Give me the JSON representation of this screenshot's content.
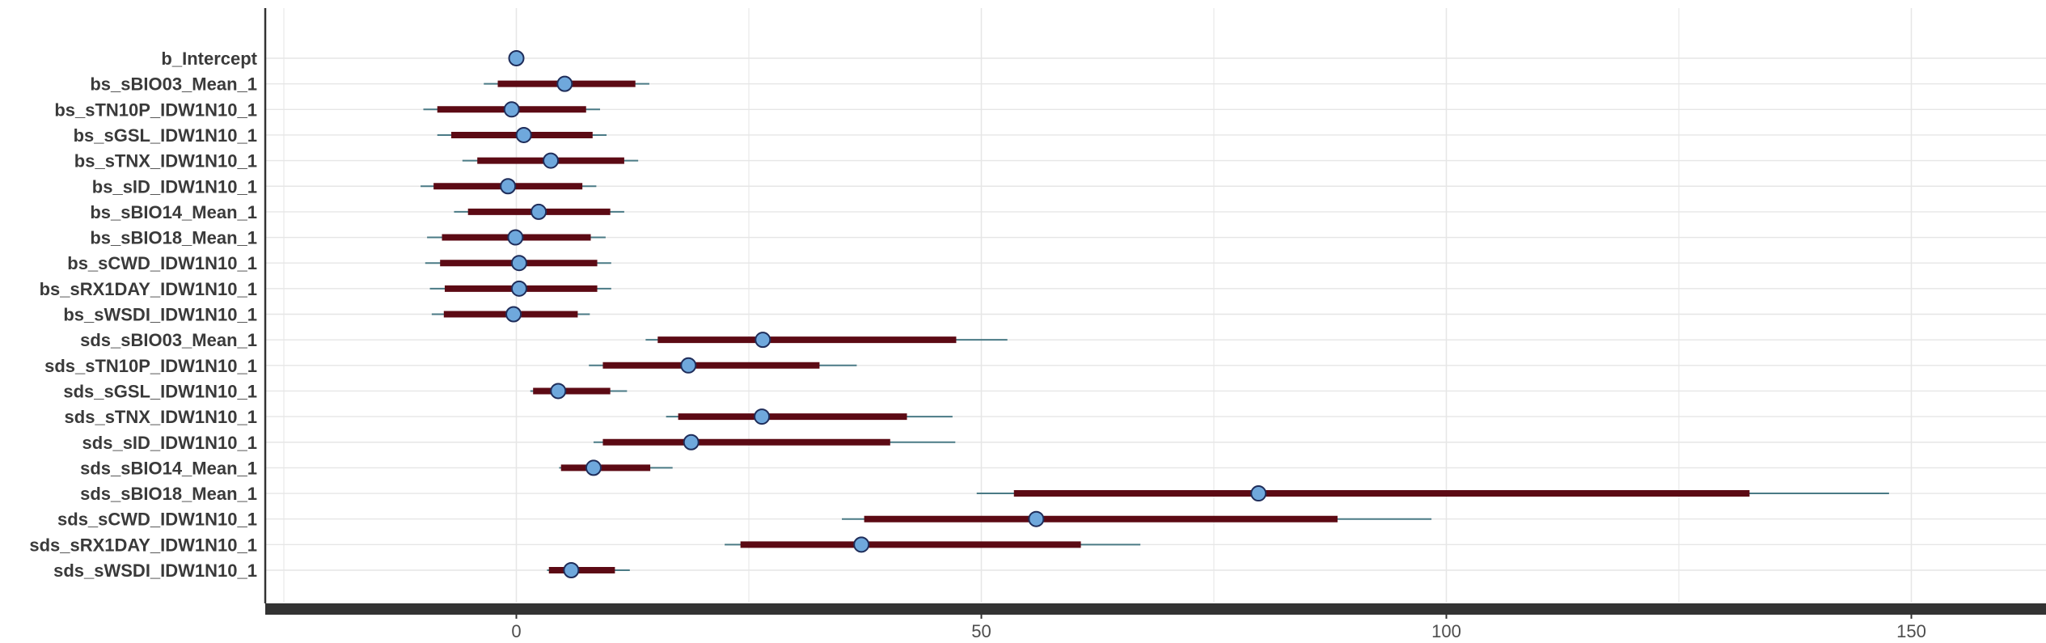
{
  "chart_data": {
    "type": "interval",
    "title": "",
    "xlabel": "",
    "ylabel": "",
    "xlim": [
      -27,
      164
    ],
    "x_ticks": [
      0,
      50,
      100,
      150
    ],
    "x_tick_labels": [
      "0",
      "50",
      "100",
      "150"
    ],
    "grid": true,
    "colors": {
      "outer_interval": "#4a7a85",
      "inner_interval": "#5c0a14",
      "point_fill": "#6fa8dc",
      "point_stroke": "#1f2d5a",
      "axis": "#333333",
      "grid": "#e6e6e6"
    },
    "parameters": [
      {
        "name": "b_Intercept",
        "point": 0,
        "inner": [
          0,
          0
        ],
        "outer": [
          0,
          0
        ]
      },
      {
        "name": "bs_sBIO03_Mean_1",
        "point": 5.2,
        "inner": [
          -2,
          12.8
        ],
        "outer": [
          -3.5,
          14.3
        ]
      },
      {
        "name": "bs_sTN10P_IDW1N10_1",
        "point": -0.5,
        "inner": [
          -8.5,
          7.5
        ],
        "outer": [
          -10,
          9
        ]
      },
      {
        "name": "bs_sGSL_IDW1N10_1",
        "point": 0.8,
        "inner": [
          -7,
          8.2
        ],
        "outer": [
          -8.5,
          9.7
        ]
      },
      {
        "name": "bs_sTNX_IDW1N10_1",
        "point": 3.7,
        "inner": [
          -4.2,
          11.6
        ],
        "outer": [
          -5.8,
          13.1
        ]
      },
      {
        "name": "bs_sID_IDW1N10_1",
        "point": -0.9,
        "inner": [
          -8.9,
          7.1
        ],
        "outer": [
          -10.3,
          8.6
        ]
      },
      {
        "name": "bs_sBIO14_Mean_1",
        "point": 2.4,
        "inner": [
          -5.2,
          10.1
        ],
        "outer": [
          -6.7,
          11.6
        ]
      },
      {
        "name": "bs_sBIO18_Mean_1",
        "point": -0.1,
        "inner": [
          -8,
          8
        ],
        "outer": [
          -9.6,
          9.6
        ]
      },
      {
        "name": "bs_sCWD_IDW1N10_1",
        "point": 0.3,
        "inner": [
          -8.2,
          8.7
        ],
        "outer": [
          -9.8,
          10.2
        ]
      },
      {
        "name": "bs_sRX1DAY_IDW1N10_1",
        "point": 0.3,
        "inner": [
          -7.7,
          8.7
        ],
        "outer": [
          -9.3,
          10.2
        ]
      },
      {
        "name": "bs_sWSDI_IDW1N10_1",
        "point": -0.3,
        "inner": [
          -7.8,
          6.6
        ],
        "outer": [
          -9.1,
          7.9
        ]
      },
      {
        "name": "sds_sBIO03_Mean_1",
        "point": 26.5,
        "inner": [
          15.2,
          47.3
        ],
        "outer": [
          13.9,
          52.8
        ]
      },
      {
        "name": "sds_sTN10P_IDW1N10_1",
        "point": 18.5,
        "inner": [
          9.3,
          32.6
        ],
        "outer": [
          7.8,
          36.6
        ]
      },
      {
        "name": "sds_sGSL_IDW1N10_1",
        "point": 4.5,
        "inner": [
          1.8,
          10.1
        ],
        "outer": [
          1.5,
          11.9
        ]
      },
      {
        "name": "sds_sTNX_IDW1N10_1",
        "point": 26.4,
        "inner": [
          17.4,
          42
        ],
        "outer": [
          16.1,
          46.9
        ]
      },
      {
        "name": "sds_sID_IDW1N10_1",
        "point": 18.8,
        "inner": [
          9.3,
          40.2
        ],
        "outer": [
          8.3,
          47.2
        ]
      },
      {
        "name": "sds_sBIO14_Mean_1",
        "point": 8.3,
        "inner": [
          4.8,
          14.4
        ],
        "outer": [
          4.6,
          16.8
        ]
      },
      {
        "name": "sds_sBIO18_Mean_1",
        "point": 79.8,
        "inner": [
          53.5,
          132.6
        ],
        "outer": [
          49.5,
          147.6
        ]
      },
      {
        "name": "sds_sCWD_IDW1N10_1",
        "point": 55.9,
        "inner": [
          37.4,
          88.3
        ],
        "outer": [
          35,
          98.4
        ]
      },
      {
        "name": "sds_sRX1DAY_IDW1N10_1",
        "point": 37.1,
        "inner": [
          24.1,
          60.7
        ],
        "outer": [
          22.4,
          67.1
        ]
      },
      {
        "name": "sds_sWSDI_IDW1N10_1",
        "point": 5.9,
        "inner": [
          3.5,
          10.6
        ],
        "outer": [
          3.3,
          12.2
        ]
      }
    ]
  }
}
